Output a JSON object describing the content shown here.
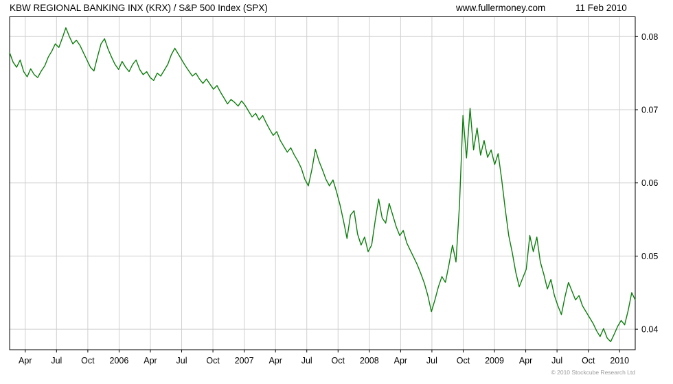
{
  "header": {
    "title": "KBW REGIONAL BANKING INX (KRX) / S&P 500 Index (SPX)",
    "source": "www.fullermoney.com",
    "date": "11 Feb 2010"
  },
  "footer": {
    "copyright": "© 2010 Stockcube Research Ltd"
  },
  "chart_data": {
    "type": "line",
    "title": "KBW REGIONAL BANKING INX (KRX) / S&P 500 Index (SPX)",
    "xlabel": "",
    "ylabel": "",
    "grid": true,
    "legend": "none",
    "line_color": "#0c7e0c",
    "grid_color": "#cfcfcf",
    "border_color": "#000000",
    "ylim": [
      0.0372,
      0.0827
    ],
    "y_ticks": [
      0.04,
      0.05,
      0.06,
      0.07,
      0.08
    ],
    "x_ticks": [
      {
        "label": "Apr",
        "pos": 0.025
      },
      {
        "label": "Jul",
        "pos": 0.075
      },
      {
        "label": "Oct",
        "pos": 0.125
      },
      {
        "label": "2006",
        "pos": 0.175
      },
      {
        "label": "Apr",
        "pos": 0.225
      },
      {
        "label": "Jul",
        "pos": 0.275
      },
      {
        "label": "Oct",
        "pos": 0.325
      },
      {
        "label": "2007",
        "pos": 0.375
      },
      {
        "label": "Apr",
        "pos": 0.425
      },
      {
        "label": "Jul",
        "pos": 0.475
      },
      {
        "label": "Oct",
        "pos": 0.525
      },
      {
        "label": "2008",
        "pos": 0.575
      },
      {
        "label": "Apr",
        "pos": 0.625
      },
      {
        "label": "Jul",
        "pos": 0.675
      },
      {
        "label": "Oct",
        "pos": 0.725
      },
      {
        "label": "2009",
        "pos": 0.775
      },
      {
        "label": "Apr",
        "pos": 0.825
      },
      {
        "label": "Jul",
        "pos": 0.875
      },
      {
        "label": "Oct",
        "pos": 0.925
      },
      {
        "label": "2010",
        "pos": 0.975
      }
    ],
    "x_range_note": "weekly-ish samples, mid-Feb 2005 through mid-Feb 2010, evenly spaced",
    "series": [
      {
        "name": "KRX / SPX ratio",
        "values": [
          0.0778,
          0.0765,
          0.0758,
          0.0768,
          0.0752,
          0.0745,
          0.0756,
          0.0748,
          0.0744,
          0.0753,
          0.076,
          0.0772,
          0.078,
          0.079,
          0.0785,
          0.0798,
          0.0812,
          0.08,
          0.079,
          0.0795,
          0.0788,
          0.0778,
          0.0768,
          0.0758,
          0.0753,
          0.0772,
          0.079,
          0.0797,
          0.0783,
          0.0772,
          0.0762,
          0.0755,
          0.0766,
          0.0758,
          0.0752,
          0.0762,
          0.0768,
          0.0755,
          0.0748,
          0.0752,
          0.0744,
          0.074,
          0.075,
          0.0746,
          0.0754,
          0.0762,
          0.0775,
          0.0784,
          0.0776,
          0.0768,
          0.076,
          0.0753,
          0.0746,
          0.075,
          0.0742,
          0.0736,
          0.0742,
          0.0735,
          0.0728,
          0.0733,
          0.0724,
          0.0716,
          0.0708,
          0.0714,
          0.071,
          0.0705,
          0.0712,
          0.0706,
          0.0698,
          0.069,
          0.0695,
          0.0686,
          0.0692,
          0.0682,
          0.0673,
          0.0665,
          0.067,
          0.0658,
          0.065,
          0.0642,
          0.0648,
          0.0638,
          0.063,
          0.062,
          0.0605,
          0.0596,
          0.0618,
          0.0646,
          0.063,
          0.0618,
          0.0605,
          0.0596,
          0.0604,
          0.0588,
          0.057,
          0.0548,
          0.0524,
          0.0556,
          0.0562,
          0.053,
          0.0515,
          0.0526,
          0.0506,
          0.0515,
          0.0548,
          0.0578,
          0.0552,
          0.0545,
          0.0572,
          0.0556,
          0.054,
          0.0528,
          0.0535,
          0.0518,
          0.0508,
          0.0498,
          0.0488,
          0.0476,
          0.0463,
          0.0446,
          0.0424,
          0.044,
          0.0458,
          0.0472,
          0.0464,
          0.0488,
          0.0515,
          0.0492,
          0.057,
          0.0692,
          0.0634,
          0.0702,
          0.0645,
          0.0675,
          0.0638,
          0.0658,
          0.0635,
          0.0645,
          0.0625,
          0.064,
          0.0605,
          0.0565,
          0.0528,
          0.0505,
          0.0478,
          0.0458,
          0.047,
          0.0482,
          0.0528,
          0.0506,
          0.0526,
          0.0492,
          0.0475,
          0.0455,
          0.0468,
          0.0446,
          0.0432,
          0.042,
          0.0444,
          0.0464,
          0.0452,
          0.044,
          0.0446,
          0.0432,
          0.0424,
          0.0416,
          0.0408,
          0.0398,
          0.039,
          0.0401,
          0.0388,
          0.0383,
          0.0393,
          0.0404,
          0.0412,
          0.0406,
          0.0426,
          0.045,
          0.044
        ]
      }
    ]
  }
}
